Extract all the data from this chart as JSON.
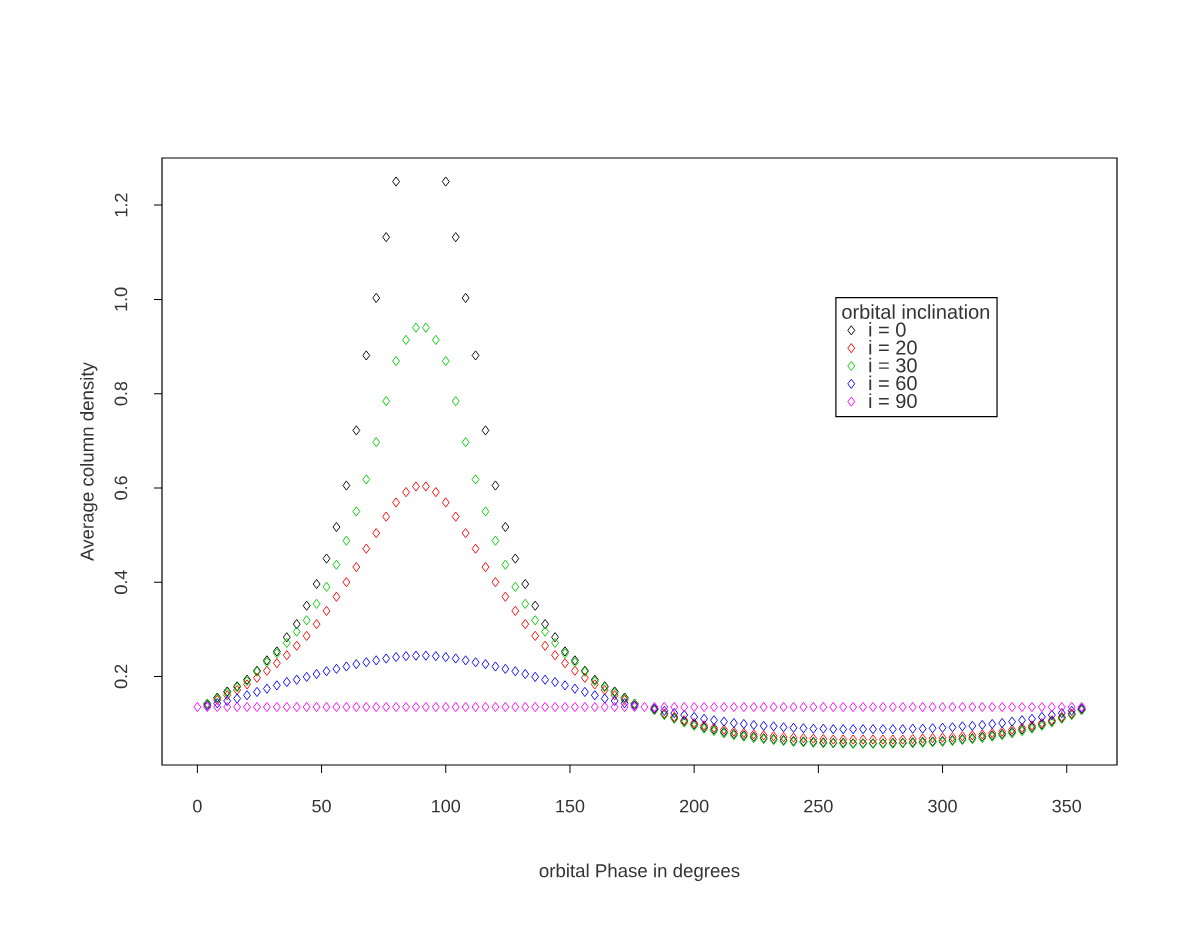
{
  "chart_data": {
    "type": "scatter",
    "xlabel": "orbital Phase in degrees",
    "ylabel": "Average column density",
    "legend_title": "orbital inclination",
    "legend": "top right",
    "marker": "diamond",
    "xlim": [
      -14.24,
      370.24
    ],
    "ylim": [
      0.012,
      1.3
    ],
    "xticks": [
      0,
      50,
      100,
      150,
      200,
      250,
      300,
      350
    ],
    "yticks": [
      {
        "value": 0.2,
        "label": "0.2"
      },
      {
        "value": 0.4,
        "label": "0.4"
      },
      {
        "value": 0.6,
        "label": "0.6"
      },
      {
        "value": 0.8,
        "label": "0.8"
      },
      {
        "value": 1.0,
        "label": "1.0"
      },
      {
        "value": 1.2,
        "label": "1.2"
      }
    ],
    "x": [
      0,
      4,
      8,
      12,
      16,
      20,
      24,
      28,
      32,
      36,
      40,
      44,
      48,
      52,
      56,
      60,
      64,
      68,
      72,
      76,
      80,
      84,
      88,
      92,
      96,
      100,
      104,
      108,
      112,
      116,
      120,
      124,
      128,
      132,
      136,
      140,
      144,
      148,
      152,
      156,
      160,
      164,
      168,
      172,
      176,
      180,
      184,
      188,
      192,
      196,
      200,
      204,
      208,
      212,
      216,
      220,
      224,
      228,
      232,
      236,
      240,
      244,
      248,
      252,
      256,
      260,
      264,
      268,
      272,
      276,
      280,
      284,
      288,
      292,
      296,
      300,
      304,
      308,
      312,
      316,
      320,
      324,
      328,
      332,
      336,
      340,
      344,
      348,
      352,
      356
    ],
    "series": [
      {
        "name": "i = 0",
        "color": "#000000",
        "values": [
          null,
          0.142,
          0.155,
          0.168,
          0.179,
          0.193,
          0.212,
          0.234,
          0.253,
          0.283,
          0.311,
          0.35,
          0.396,
          0.45,
          0.517,
          0.605,
          0.722,
          0.881,
          1.003,
          1.132,
          1.25,
          null,
          null,
          null,
          null,
          1.25,
          1.132,
          1.003,
          0.881,
          0.722,
          0.605,
          0.517,
          0.45,
          0.396,
          0.35,
          0.311,
          0.283,
          0.253,
          0.234,
          0.212,
          0.193,
          0.179,
          0.168,
          0.155,
          0.142,
          null,
          0.13,
          0.12,
          0.112,
          0.105,
          0.098,
          0.092,
          0.087,
          0.082,
          0.078,
          0.075,
          0.072,
          0.069,
          0.067,
          0.065,
          0.063,
          0.062,
          0.061,
          0.06,
          0.059,
          0.059,
          0.058,
          0.058,
          0.058,
          0.058,
          0.059,
          0.059,
          0.06,
          0.061,
          0.062,
          0.063,
          0.065,
          0.067,
          0.069,
          0.072,
          0.075,
          0.078,
          0.082,
          0.087,
          0.092,
          0.098,
          0.105,
          0.112,
          0.12,
          0.13
        ]
      },
      {
        "name": "i = 20",
        "color": "#ff0000",
        "values": [
          null,
          0.141,
          0.15,
          0.16,
          0.171,
          0.183,
          0.197,
          0.212,
          0.228,
          0.245,
          0.265,
          0.286,
          0.311,
          0.339,
          0.369,
          0.4,
          0.432,
          0.471,
          0.504,
          0.539,
          0.569,
          0.591,
          0.603,
          0.603,
          0.591,
          0.569,
          0.539,
          0.504,
          0.471,
          0.432,
          0.4,
          0.369,
          0.339,
          0.311,
          0.286,
          0.265,
          0.245,
          0.228,
          0.212,
          0.197,
          0.183,
          0.171,
          0.16,
          0.15,
          0.141,
          null,
          0.13,
          0.121,
          0.114,
          0.107,
          0.101,
          0.096,
          0.091,
          0.087,
          0.083,
          0.08,
          0.077,
          0.075,
          0.073,
          0.071,
          0.07,
          0.069,
          0.068,
          0.067,
          0.066,
          0.066,
          0.066,
          0.066,
          0.066,
          0.066,
          0.066,
          0.066,
          0.067,
          0.068,
          0.069,
          0.07,
          0.071,
          0.073,
          0.075,
          0.077,
          0.08,
          0.083,
          0.087,
          0.091,
          0.096,
          0.101,
          0.107,
          0.114,
          0.121,
          0.13
        ]
      },
      {
        "name": "i = 30",
        "color": "#00cd00",
        "values": [
          null,
          0.142,
          0.153,
          0.165,
          0.177,
          0.19,
          0.21,
          0.23,
          0.249,
          0.271,
          0.295,
          0.319,
          0.354,
          0.39,
          0.437,
          0.488,
          0.55,
          0.618,
          0.697,
          0.784,
          0.869,
          0.914,
          0.94,
          0.94,
          0.914,
          0.869,
          0.784,
          0.697,
          0.618,
          0.55,
          0.488,
          0.437,
          0.39,
          0.354,
          0.319,
          0.295,
          0.271,
          0.249,
          0.23,
          0.21,
          0.19,
          0.177,
          0.165,
          0.153,
          0.142,
          null,
          0.128,
          0.118,
          0.11,
          0.102,
          0.095,
          0.089,
          0.084,
          0.079,
          0.075,
          0.072,
          0.069,
          0.067,
          0.065,
          0.063,
          0.061,
          0.06,
          0.059,
          0.058,
          0.058,
          0.057,
          0.057,
          0.057,
          0.057,
          0.057,
          0.057,
          0.058,
          0.058,
          0.059,
          0.06,
          0.061,
          0.063,
          0.065,
          0.067,
          0.069,
          0.072,
          0.075,
          0.079,
          0.084,
          0.089,
          0.095,
          0.102,
          0.11,
          0.118,
          0.128
        ]
      },
      {
        "name": "i = 60",
        "color": "#0000ff",
        "values": [
          null,
          0.138,
          0.143,
          0.148,
          0.153,
          0.16,
          0.167,
          0.174,
          0.181,
          0.188,
          0.193,
          0.199,
          0.205,
          0.211,
          0.216,
          0.221,
          0.226,
          0.23,
          0.234,
          0.238,
          0.241,
          0.243,
          0.244,
          0.244,
          0.243,
          0.241,
          0.238,
          0.234,
          0.23,
          0.226,
          0.221,
          0.216,
          0.211,
          0.205,
          0.199,
          0.193,
          0.188,
          0.181,
          0.174,
          0.167,
          0.16,
          0.153,
          0.148,
          0.143,
          0.138,
          null,
          0.132,
          0.127,
          0.122,
          0.118,
          0.114,
          0.11,
          0.107,
          0.104,
          0.101,
          0.099,
          0.097,
          0.095,
          0.094,
          0.092,
          0.091,
          0.09,
          0.089,
          0.089,
          0.088,
          0.088,
          0.088,
          0.088,
          0.088,
          0.088,
          0.088,
          0.088,
          0.089,
          0.089,
          0.09,
          0.091,
          0.092,
          0.094,
          0.095,
          0.097,
          0.099,
          0.101,
          0.104,
          0.107,
          0.11,
          0.114,
          0.118,
          0.122,
          0.127,
          0.132
        ]
      },
      {
        "name": "i = 90",
        "color": "#ff00ff",
        "values": [
          0.135,
          0.135,
          0.135,
          0.135,
          0.135,
          0.135,
          0.135,
          0.135,
          0.135,
          0.135,
          0.135,
          0.135,
          0.135,
          0.135,
          0.135,
          0.135,
          0.135,
          0.135,
          0.135,
          0.135,
          0.135,
          0.135,
          0.135,
          0.135,
          0.135,
          0.135,
          0.135,
          0.135,
          0.135,
          0.135,
          0.135,
          0.135,
          0.135,
          0.135,
          0.135,
          0.135,
          0.135,
          0.135,
          0.135,
          0.135,
          0.135,
          0.135,
          0.135,
          0.135,
          0.135,
          0.135,
          0.135,
          0.135,
          0.135,
          0.135,
          0.135,
          0.135,
          0.135,
          0.135,
          0.135,
          0.135,
          0.135,
          0.135,
          0.135,
          0.135,
          0.135,
          0.135,
          0.135,
          0.135,
          0.135,
          0.135,
          0.135,
          0.135,
          0.135,
          0.135,
          0.135,
          0.135,
          0.135,
          0.135,
          0.135,
          0.135,
          0.135,
          0.135,
          0.135,
          0.135,
          0.135,
          0.135,
          0.135,
          0.135,
          0.135,
          0.135,
          0.135,
          0.135,
          0.135,
          0.135
        ]
      }
    ]
  }
}
